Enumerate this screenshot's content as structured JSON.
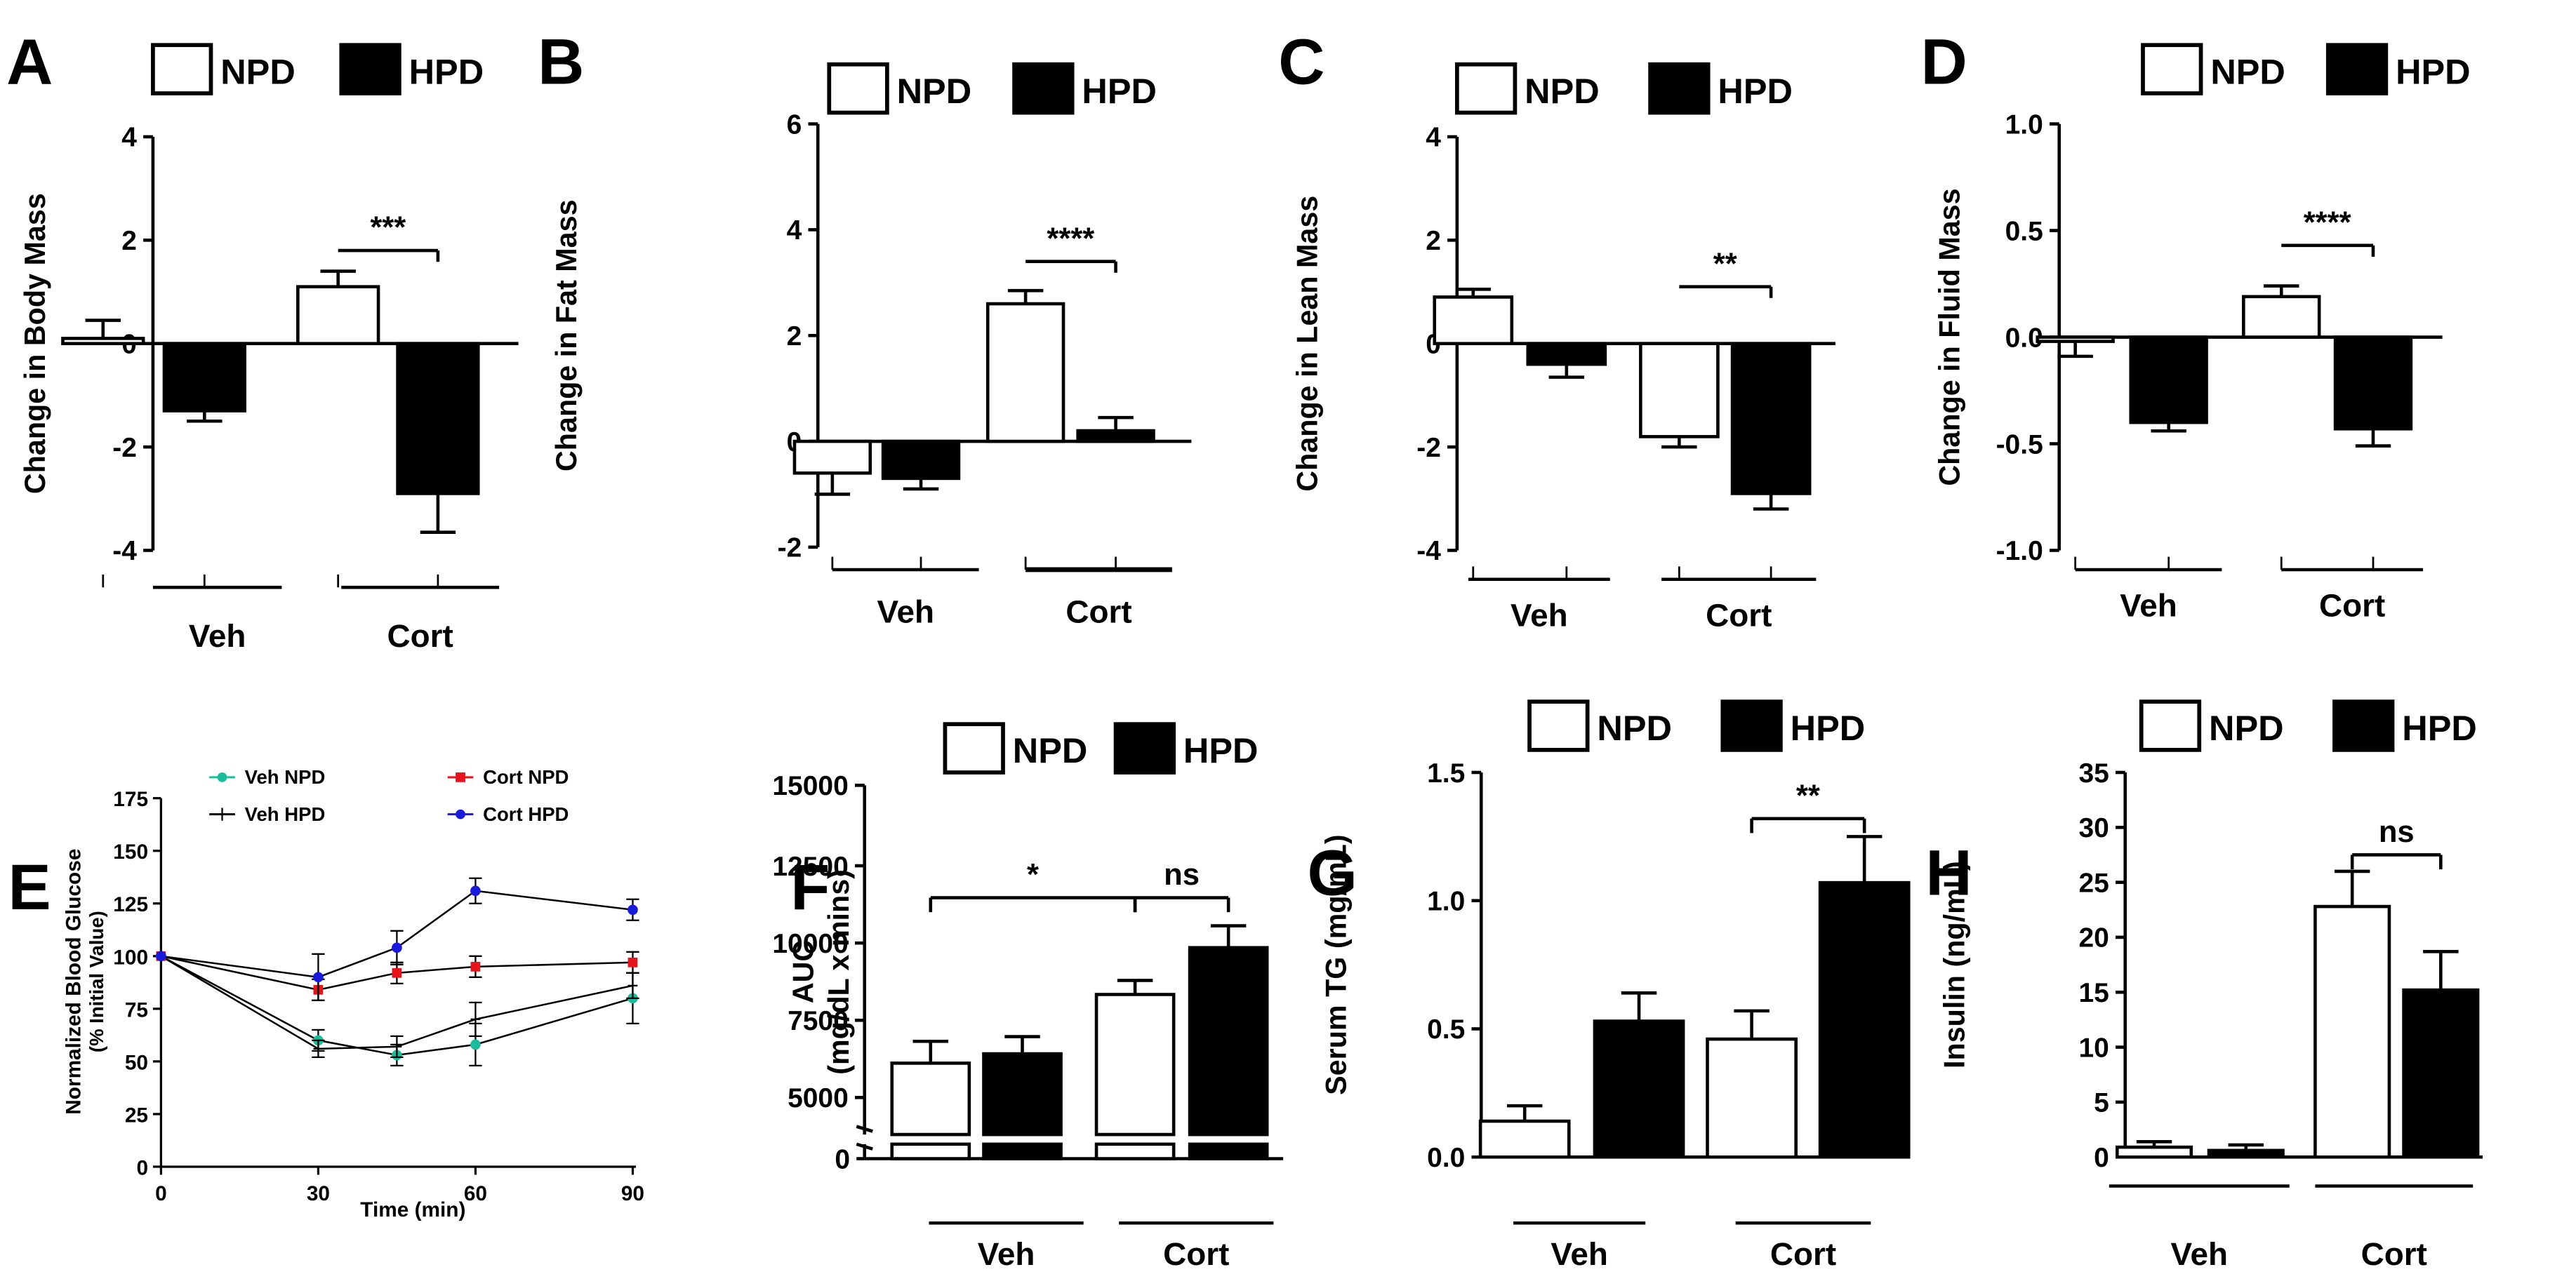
{
  "legend": {
    "npd": "NPD",
    "hpd": "HPD"
  },
  "groups": [
    "Veh",
    "Cort"
  ],
  "colors": {
    "npd_fill": "#ffffff",
    "hpd_fill": "#000000",
    "stroke": "#000000",
    "veh_npd": "#1abc9c",
    "veh_hpd": "#000000",
    "cort_npd": "#e8141c",
    "cort_hpd": "#1a1adb"
  },
  "chart_data": [
    {
      "id": "A",
      "letter": "A",
      "type": "bar",
      "ylabel": "Change in Body Mass",
      "ylim": [
        -4,
        4
      ],
      "yticks": [
        4,
        2,
        0,
        -2,
        -4
      ],
      "tick_labels": [
        "4",
        "2",
        "0",
        "-2",
        "-4"
      ],
      "categories": [
        "Veh",
        "Cort"
      ],
      "series": [
        {
          "name": "NPD",
          "values": [
            0.1,
            1.1
          ],
          "errors": [
            0.35,
            0.3
          ]
        },
        {
          "name": "HPD",
          "values": [
            -1.3,
            -2.9
          ],
          "errors": [
            0.2,
            0.75
          ]
        }
      ],
      "annotations": [
        {
          "label": "***",
          "group": "Cort",
          "at": 1.8,
          "ticks": "right"
        }
      ]
    },
    {
      "id": "B",
      "letter": "B",
      "type": "bar",
      "ylabel": "Change in Fat Mass",
      "ylim": [
        -2,
        6
      ],
      "yticks": [
        6,
        4,
        2,
        0,
        -2
      ],
      "tick_labels": [
        "6",
        "4",
        "2",
        "0",
        "-2"
      ],
      "categories": [
        "Veh",
        "Cort"
      ],
      "series": [
        {
          "name": "NPD",
          "values": [
            -0.6,
            2.6
          ],
          "errors": [
            0.4,
            0.25
          ]
        },
        {
          "name": "HPD",
          "values": [
            -0.7,
            0.2
          ],
          "errors": [
            0.2,
            0.25
          ]
        }
      ],
      "annotations": [
        {
          "label": "****",
          "group": "Cort",
          "at": 3.4,
          "ticks": "right"
        }
      ]
    },
    {
      "id": "C",
      "letter": "C",
      "type": "bar",
      "ylabel": "Change in Lean Mass",
      "ylim": [
        -4,
        4
      ],
      "yticks": [
        4,
        2,
        0,
        -2,
        -4
      ],
      "tick_labels": [
        "4",
        "2",
        "0",
        "-2",
        "-4"
      ],
      "categories": [
        "Veh",
        "Cort"
      ],
      "series": [
        {
          "name": "NPD",
          "values": [
            0.9,
            -1.8
          ],
          "errors": [
            0.15,
            0.2
          ]
        },
        {
          "name": "HPD",
          "values": [
            -0.4,
            -2.9
          ],
          "errors": [
            0.25,
            0.3
          ]
        }
      ],
      "annotations": [
        {
          "label": "**",
          "group": "Cort",
          "at": 1.1,
          "ticks": "right"
        }
      ]
    },
    {
      "id": "D",
      "letter": "D",
      "type": "bar",
      "ylabel": "Change in Fluid Mass",
      "ylim": [
        -1.0,
        1.0
      ],
      "yticks": [
        1.0,
        0.5,
        0.0,
        -0.5,
        -1.0
      ],
      "tick_labels": [
        "1.0",
        "0.5",
        "0.0",
        "-0.5",
        "-1.0"
      ],
      "categories": [
        "Veh",
        "Cort"
      ],
      "series": [
        {
          "name": "NPD",
          "values": [
            -0.02,
            0.19
          ],
          "errors": [
            0.07,
            0.05
          ]
        },
        {
          "name": "HPD",
          "values": [
            -0.4,
            -0.43
          ],
          "errors": [
            0.04,
            0.08
          ]
        }
      ],
      "annotations": [
        {
          "label": "****",
          "group": "Cort",
          "at": 0.43,
          "ticks": "right"
        }
      ]
    },
    {
      "id": "E",
      "letter": "E",
      "type": "line",
      "ylabel": "Normalized Blood Glucose",
      "ylabel2": "(% Initial Value)",
      "xlabel": "Time (min)",
      "ylim": [
        0,
        175
      ],
      "xlim": [
        0,
        90
      ],
      "yticks": [
        0,
        25,
        50,
        75,
        100,
        125,
        150,
        175
      ],
      "tick_labels": [
        "0",
        "25",
        "50",
        "75",
        "100",
        "125",
        "150",
        "175"
      ],
      "xticks": [
        0,
        30,
        60,
        90
      ],
      "xtick_labels": [
        "0",
        "30",
        "60",
        "90"
      ],
      "x": [
        0,
        30,
        45,
        60,
        90
      ],
      "series": [
        {
          "name": "Veh NPD",
          "values": [
            100,
            60,
            53,
            58,
            80
          ],
          "errors": [
            0,
            5,
            5,
            10,
            12
          ]
        },
        {
          "name": "Veh HPD",
          "values": [
            100,
            56,
            57,
            70,
            86
          ],
          "errors": [
            0,
            4,
            5,
            8,
            6
          ]
        },
        {
          "name": "Cort NPD",
          "values": [
            100,
            84,
            92,
            95,
            97
          ],
          "errors": [
            0,
            5,
            5,
            5,
            5
          ]
        },
        {
          "name": "Cort HPD",
          "values": [
            100,
            90,
            104,
            131,
            122
          ],
          "errors": [
            0,
            11,
            8,
            6,
            5
          ]
        }
      ]
    },
    {
      "id": "F",
      "letter": "F",
      "type": "bar",
      "ylabel": "AUC",
      "ylabel2": "(mg/dL x mins)",
      "ylim": [
        5000,
        15000
      ],
      "yticks": [
        5000,
        7500,
        10000,
        12500,
        15000
      ],
      "tick_labels": [
        "5000",
        "7500",
        "10000",
        "12500",
        "15000"
      ],
      "broken_axis_label": "0",
      "categories": [
        "Veh",
        "Cort"
      ],
      "series": [
        {
          "name": "NPD",
          "values": [
            6100,
            8300
          ],
          "errors": [
            700,
            450
          ]
        },
        {
          "name": "HPD",
          "values": [
            6400,
            9800
          ],
          "errors": [
            550,
            700
          ]
        }
      ],
      "annotations": [
        {
          "label": "*",
          "span": "veh-npd-to-cort-npd",
          "at": 11400
        },
        {
          "label": "ns",
          "group": "Cort",
          "at": 11400,
          "ticks": "both"
        }
      ]
    },
    {
      "id": "G",
      "letter": "G",
      "type": "bar",
      "ylabel": "Serum TG (mg/mL)",
      "ylim": [
        0.0,
        1.5
      ],
      "yticks": [
        0.0,
        0.5,
        1.0,
        1.5
      ],
      "tick_labels": [
        "0.0",
        "0.5",
        "1.0",
        "1.5"
      ],
      "categories": [
        "Veh",
        "Cort"
      ],
      "series": [
        {
          "name": "NPD",
          "values": [
            0.14,
            0.46
          ],
          "errors": [
            0.06,
            0.11
          ]
        },
        {
          "name": "HPD",
          "values": [
            0.53,
            1.07
          ],
          "errors": [
            0.11,
            0.18
          ]
        }
      ],
      "annotations": [
        {
          "label": "**",
          "group": "Cort",
          "at": 1.32,
          "ticks": "both"
        }
      ]
    },
    {
      "id": "H",
      "letter": "H",
      "type": "bar",
      "ylabel": "Insulin (ng/mL)",
      "ylim": [
        0,
        35
      ],
      "yticks": [
        0,
        5,
        10,
        15,
        20,
        25,
        30,
        35
      ],
      "tick_labels": [
        "0",
        "5",
        "10",
        "15",
        "20",
        "25",
        "30",
        "35"
      ],
      "categories": [
        "Veh",
        "Cort"
      ],
      "series": [
        {
          "name": "NPD",
          "values": [
            0.9,
            22.8
          ],
          "errors": [
            0.5,
            3.2
          ]
        },
        {
          "name": "HPD",
          "values": [
            0.6,
            15.2
          ],
          "errors": [
            0.5,
            3.5
          ]
        }
      ],
      "annotations": [
        {
          "label": "ns",
          "group": "Cort",
          "at": 27.5,
          "ticks": "both"
        }
      ]
    }
  ]
}
